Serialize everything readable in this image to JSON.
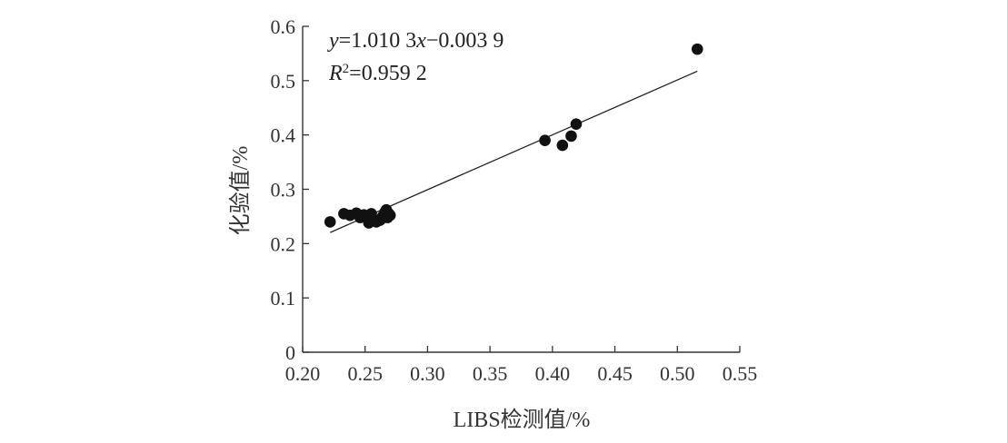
{
  "chart_data": {
    "type": "scatter",
    "xlabel": "LIBS检测值/%",
    "ylabel": "化验值/%",
    "xlim": [
      0.2,
      0.55
    ],
    "ylim": [
      0,
      0.6
    ],
    "x_ticks": [
      "0.20",
      "0.25",
      "0.30",
      "0.35",
      "0.40",
      "0.45",
      "0.50",
      "0.55"
    ],
    "y_ticks": [
      "0",
      "0.1",
      "0.2",
      "0.3",
      "0.4",
      "0.5",
      "0.6"
    ],
    "grid": false,
    "points": [
      {
        "x": 0.222,
        "y": 0.24
      },
      {
        "x": 0.233,
        "y": 0.255
      },
      {
        "x": 0.238,
        "y": 0.252
      },
      {
        "x": 0.243,
        "y": 0.256
      },
      {
        "x": 0.246,
        "y": 0.248
      },
      {
        "x": 0.249,
        "y": 0.253
      },
      {
        "x": 0.253,
        "y": 0.238
      },
      {
        "x": 0.255,
        "y": 0.255
      },
      {
        "x": 0.259,
        "y": 0.24
      },
      {
        "x": 0.262,
        "y": 0.243
      },
      {
        "x": 0.264,
        "y": 0.25
      },
      {
        "x": 0.266,
        "y": 0.258
      },
      {
        "x": 0.267,
        "y": 0.262
      },
      {
        "x": 0.268,
        "y": 0.248
      },
      {
        "x": 0.269,
        "y": 0.255
      },
      {
        "x": 0.27,
        "y": 0.252
      },
      {
        "x": 0.394,
        "y": 0.39
      },
      {
        "x": 0.408,
        "y": 0.381
      },
      {
        "x": 0.415,
        "y": 0.398
      },
      {
        "x": 0.419,
        "y": 0.42
      },
      {
        "x": 0.516,
        "y": 0.558
      }
    ],
    "fit_line": {
      "slope": 1.0103,
      "intercept": -0.0039,
      "x_range": [
        0.222,
        0.516
      ]
    },
    "annotation": {
      "eq_y": "y",
      "eq_mid": "=1.010 3",
      "eq_x": "x",
      "eq_rest": "−0.003 9",
      "r_sym": "R",
      "r_sup": "2",
      "r_val": "=0.959 2"
    },
    "colors": {
      "axis": "#333333",
      "point": "#111111",
      "line": "#222222"
    }
  }
}
